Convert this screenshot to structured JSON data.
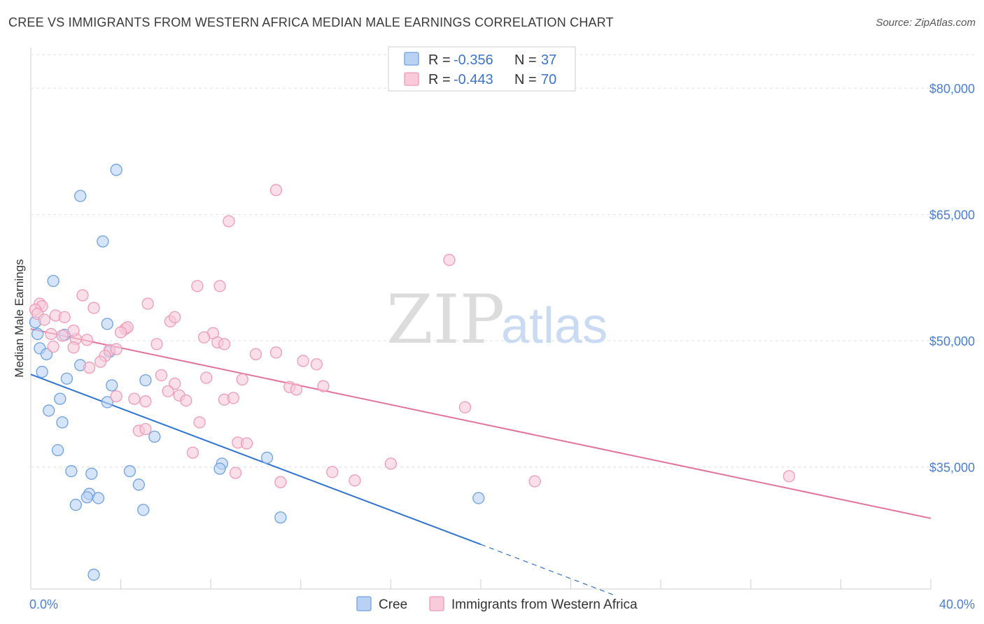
{
  "title": "CREE VS IMMIGRANTS FROM WESTERN AFRICA MEDIAN MALE EARNINGS CORRELATION CHART",
  "source": "Source: ZipAtlas.com",
  "watermark": {
    "zip": "ZIP",
    "atlas": "atlas"
  },
  "chart_data": {
    "type": "scatter",
    "title": "CREE VS IMMIGRANTS FROM WESTERN AFRICA MEDIAN MALE EARNINGS CORRELATION CHART",
    "xlabel": "",
    "ylabel": "Median Male Earnings",
    "xlim": [
      0,
      40
    ],
    "ylim": [
      20500,
      84000
    ],
    "x_tick_labels": [
      {
        "value": 0,
        "label": "0.0%"
      },
      {
        "value": 40,
        "label": "40.0%"
      }
    ],
    "y_ticks": [
      {
        "value": 35000,
        "label": "$35,000"
      },
      {
        "value": 50000,
        "label": "$50,000"
      },
      {
        "value": 65000,
        "label": "$65,000"
      },
      {
        "value": 80000,
        "label": "$80,000"
      }
    ],
    "grid": true,
    "legend_position": "top-center",
    "legend": [
      {
        "r_label": "R =",
        "r_value": "-0.356",
        "n_label": "N =",
        "n_value": "37"
      },
      {
        "r_label": "R =",
        "r_value": "-0.443",
        "n_label": "N =",
        "n_value": "70"
      }
    ],
    "series": [
      {
        "name": "Cree",
        "color": "#6fa1e3",
        "fill": "#b9d2f3",
        "line_color": "#2f73d2",
        "trend": {
          "x1": 0.0,
          "y1": 46000,
          "x2": 20.0,
          "y2": 25800,
          "dash_to_x": 26.0,
          "dash_to_y": 19700
        },
        "points": [
          [
            3.8,
            70300
          ],
          [
            2.2,
            67200
          ],
          [
            3.2,
            61800
          ],
          [
            1.0,
            57100
          ],
          [
            0.2,
            52200
          ],
          [
            3.4,
            52000
          ],
          [
            0.3,
            50800
          ],
          [
            1.5,
            50700
          ],
          [
            0.4,
            49100
          ],
          [
            0.7,
            48400
          ],
          [
            3.5,
            48700
          ],
          [
            2.2,
            47100
          ],
          [
            0.5,
            46300
          ],
          [
            1.6,
            45500
          ],
          [
            5.1,
            45300
          ],
          [
            3.6,
            44700
          ],
          [
            1.3,
            43100
          ],
          [
            3.4,
            42700
          ],
          [
            0.8,
            41700
          ],
          [
            1.4,
            40300
          ],
          [
            5.5,
            38600
          ],
          [
            1.2,
            37000
          ],
          [
            10.5,
            36100
          ],
          [
            8.5,
            35400
          ],
          [
            1.8,
            34500
          ],
          [
            4.4,
            34500
          ],
          [
            8.4,
            34800
          ],
          [
            2.7,
            34200
          ],
          [
            4.8,
            32900
          ],
          [
            2.6,
            31800
          ],
          [
            2.5,
            31400
          ],
          [
            3.0,
            31300
          ],
          [
            2.0,
            30500
          ],
          [
            19.9,
            31300
          ],
          [
            5.0,
            29900
          ],
          [
            11.1,
            29000
          ],
          [
            2.8,
            22200
          ]
        ]
      },
      {
        "name": "Immigrants from Western Africa",
        "color": "#ef9bb6",
        "fill": "#f9cad9",
        "line_color": "#e2739a",
        "trend": {
          "x1": 0.0,
          "y1": 51400,
          "x2": 40.0,
          "y2": 28900
        },
        "points": [
          [
            10.9,
            67900
          ],
          [
            8.8,
            64200
          ],
          [
            18.6,
            59600
          ],
          [
            7.4,
            56500
          ],
          [
            8.4,
            56500
          ],
          [
            2.3,
            55400
          ],
          [
            0.4,
            54400
          ],
          [
            0.5,
            54100
          ],
          [
            0.2,
            53700
          ],
          [
            0.3,
            53200
          ],
          [
            5.2,
            54400
          ],
          [
            2.8,
            53900
          ],
          [
            1.1,
            53000
          ],
          [
            1.5,
            52800
          ],
          [
            0.6,
            52500
          ],
          [
            6.2,
            52300
          ],
          [
            6.4,
            52800
          ],
          [
            4.2,
            51400
          ],
          [
            4.3,
            51600
          ],
          [
            4.0,
            51000
          ],
          [
            8.1,
            50900
          ],
          [
            1.4,
            50600
          ],
          [
            2.0,
            50200
          ],
          [
            2.5,
            50100
          ],
          [
            7.7,
            50400
          ],
          [
            8.3,
            49800
          ],
          [
            1.0,
            49300
          ],
          [
            1.9,
            49200
          ],
          [
            5.6,
            49600
          ],
          [
            3.5,
            48900
          ],
          [
            3.8,
            49000
          ],
          [
            10.0,
            48400
          ],
          [
            10.9,
            48600
          ],
          [
            3.3,
            48200
          ],
          [
            3.1,
            47500
          ],
          [
            12.1,
            47600
          ],
          [
            12.7,
            47200
          ],
          [
            2.6,
            46800
          ],
          [
            5.8,
            45900
          ],
          [
            7.8,
            45600
          ],
          [
            9.4,
            45400
          ],
          [
            6.4,
            44900
          ],
          [
            11.5,
            44500
          ],
          [
            11.8,
            44200
          ],
          [
            13.0,
            44600
          ],
          [
            6.1,
            44000
          ],
          [
            6.6,
            43500
          ],
          [
            3.8,
            43400
          ],
          [
            4.6,
            43100
          ],
          [
            6.9,
            42900
          ],
          [
            8.6,
            43000
          ],
          [
            9.0,
            43200
          ],
          [
            5.1,
            42800
          ],
          [
            19.3,
            42100
          ],
          [
            7.5,
            40300
          ],
          [
            4.8,
            39300
          ],
          [
            5.1,
            39500
          ],
          [
            9.2,
            37900
          ],
          [
            9.6,
            37800
          ],
          [
            7.2,
            36700
          ],
          [
            16.0,
            35400
          ],
          [
            9.1,
            34300
          ],
          [
            13.4,
            34400
          ],
          [
            14.4,
            33400
          ],
          [
            11.1,
            33200
          ],
          [
            22.4,
            33300
          ],
          [
            33.7,
            33900
          ],
          [
            8.6,
            49600
          ],
          [
            1.9,
            51200
          ],
          [
            0.9,
            50800
          ]
        ]
      }
    ]
  },
  "bottom_legend": [
    {
      "label": "Cree"
    },
    {
      "label": "Immigrants from Western Africa"
    }
  ]
}
